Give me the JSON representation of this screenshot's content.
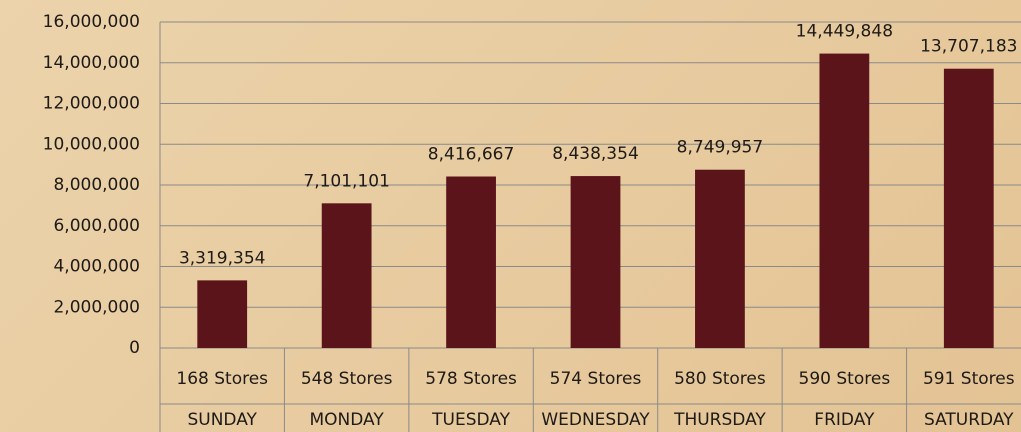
{
  "chart_data": {
    "type": "bar",
    "categories": [
      "SUNDAY",
      "MONDAY",
      "TUESDAY",
      "WEDNESDAY",
      "THURSDAY",
      "FRIDAY",
      "SATURDAY"
    ],
    "store_labels": [
      "168 Stores",
      "548 Stores",
      "578 Stores",
      "574 Stores",
      "580 Stores",
      "590 Stores",
      "591 Stores"
    ],
    "values": [
      3319354,
      7101101,
      8416667,
      8438354,
      8749957,
      14449848,
      13707183
    ],
    "value_labels": [
      "3,319,354",
      "7,101,101",
      "8,416,667",
      "8,438,354",
      "8,749,957",
      "14,449,848",
      "13,707,183"
    ],
    "color": "#5a141a",
    "ylim": [
      0,
      16000000
    ],
    "yticks": [
      0,
      {
        "value": 2000000,
        "label": "2,000,000"
      },
      {
        "value": 4000000,
        "label": "4,000,000"
      },
      {
        "value": 6000000,
        "label": "6,000,000"
      },
      {
        "value": 8000000,
        "label": "8,000,000"
      },
      {
        "value": 10000000,
        "label": "10,000,000"
      },
      {
        "value": 12000000,
        "label": "12,000,000"
      },
      {
        "value": 14000000,
        "label": "14,000,000"
      },
      {
        "value": 16000000,
        "label": "16,000,000"
      }
    ],
    "grid": true
  }
}
